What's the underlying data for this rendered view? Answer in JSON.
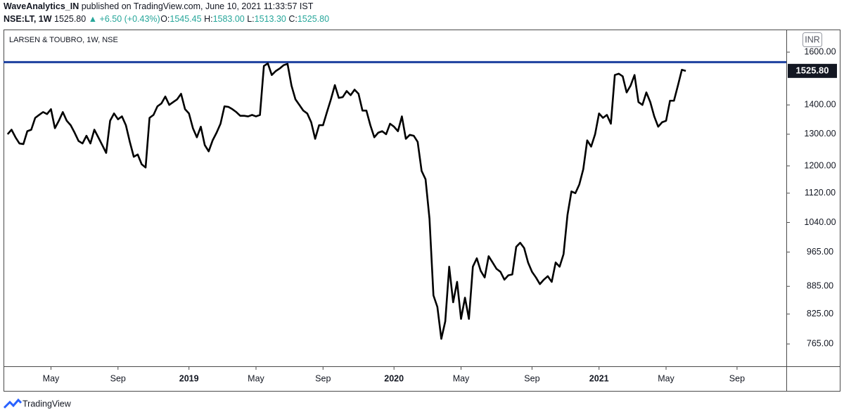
{
  "chart_data": {
    "type": "line",
    "publisher": "WaveAnalytics_IN",
    "published_text": "published on TradingView.com, June 10, 2021 11:33:57 IST",
    "quote": {
      "symbol": "NSE:LT, 1W",
      "last": "1525.80",
      "change": "▲ +6.50 (+0.43%)",
      "open_label": "O:",
      "open": "1545.45",
      "high_label": "H:",
      "high": "1583.00",
      "low_label": "L:",
      "low": "1513.30",
      "close_label": "C:",
      "close": "1525.80"
    },
    "title": "LARSEN & TOUBRO, 1W, NSE",
    "currency": "INR",
    "brand": "TradingView",
    "color": "#000000",
    "log_scale": true,
    "grid": false,
    "hline": {
      "value": 1560,
      "color": "#1c3f9e"
    },
    "last_value_label": {
      "value": 1525.8,
      "label": "1525.80"
    },
    "ylim": [
      723,
      1694
    ],
    "yticks": [
      {
        "value": 1600,
        "label": "1600.00"
      },
      {
        "value": 1400,
        "label": "1400.00"
      },
      {
        "value": 1300,
        "label": "1300.00"
      },
      {
        "value": 1200,
        "label": "1200.00"
      },
      {
        "value": 1120,
        "label": "1120.00"
      },
      {
        "value": 1040,
        "label": "1040.00"
      },
      {
        "value": 965,
        "label": "965.00"
      },
      {
        "value": 885,
        "label": "885.00"
      },
      {
        "value": 825,
        "label": "825.00"
      },
      {
        "value": 765,
        "label": "765.00"
      }
    ],
    "categories": [
      null,
      null,
      null,
      null,
      null,
      null,
      null,
      null,
      null,
      null,
      null,
      "May",
      null,
      null,
      null,
      null,
      null,
      null,
      null,
      null,
      null,
      null,
      null,
      null,
      null,
      null,
      null,
      null,
      "Sep",
      null,
      null,
      null,
      null,
      null,
      null,
      null,
      null,
      null,
      null,
      null,
      null,
      null,
      null,
      null,
      null,
      null,
      "2019",
      null,
      null,
      null,
      null,
      null,
      null,
      null,
      null,
      null,
      null,
      null,
      null,
      null,
      null,
      null,
      null,
      "May",
      null,
      null,
      null,
      null,
      null,
      null,
      null,
      null,
      null,
      null,
      null,
      null,
      null,
      null,
      null,
      null,
      "Sep",
      null,
      null,
      null,
      null,
      null,
      null,
      null,
      null,
      null,
      null,
      null,
      null,
      null,
      null,
      null,
      null,
      null,
      "2020",
      null,
      null,
      null,
      null,
      null,
      null,
      null,
      null,
      null,
      null,
      null,
      null,
      null,
      null,
      null,
      null,
      "May",
      null,
      null,
      null,
      null,
      null,
      null,
      null,
      null,
      null,
      null,
      null,
      null,
      null,
      null,
      null,
      null,
      null,
      "Sep",
      null,
      null,
      null,
      null,
      null,
      null,
      null,
      null,
      null,
      null,
      null,
      null,
      null,
      null,
      null,
      null,
      "2021",
      null,
      null,
      null,
      null,
      null,
      null,
      null,
      null,
      null,
      null,
      null,
      null,
      null,
      null,
      null,
      null,
      "May",
      null,
      null,
      null,
      null,
      null,
      null,
      null,
      null,
      null,
      null,
      null,
      null,
      null,
      null,
      null,
      null,
      null,
      "Sep",
      null,
      null,
      null,
      null,
      null,
      null,
      null,
      null,
      null,
      null,
      null,
      null
    ],
    "values": [
      1300,
      1315,
      1290,
      1270,
      1268,
      1310,
      1315,
      1355,
      1365,
      1375,
      1368,
      1385,
      1320,
      1345,
      1375,
      1345,
      1330,
      1305,
      1278,
      1270,
      1295,
      1270,
      1315,
      1290,
      1265,
      1240,
      1345,
      1370,
      1350,
      1360,
      1330,
      1275,
      1228,
      1235,
      1205,
      1195,
      1355,
      1365,
      1395,
      1405,
      1430,
      1400,
      1410,
      1420,
      1440,
      1385,
      1370,
      1320,
      1290,
      1325,
      1265,
      1245,
      1280,
      1305,
      1335,
      1395,
      1393,
      1385,
      1375,
      1362,
      1362,
      1360,
      1365,
      1360,
      1365,
      1545,
      1555,
      1510,
      1525,
      1535,
      1548,
      1553,
      1470,
      1420,
      1400,
      1380,
      1370,
      1340,
      1285,
      1330,
      1330,
      1375,
      1420,
      1472,
      1425,
      1428,
      1450,
      1435,
      1455,
      1440,
      1380,
      1380,
      1330,
      1290,
      1305,
      1310,
      1300,
      1335,
      1325,
      1310,
      1360,
      1285,
      1298,
      1295,
      1275,
      1185,
      1160,
      1050,
      865,
      840,
      775,
      810,
      930,
      850,
      895,
      815,
      860,
      815,
      930,
      950,
      920,
      905,
      955,
      940,
      925,
      918,
      900,
      910,
      912,
      978,
      988,
      975,
      940,
      918,
      905,
      890,
      900,
      908,
      895,
      940,
      930,
      960,
      1060,
      1125,
      1120,
      1145,
      1190,
      1280,
      1260,
      1300,
      1370,
      1355,
      1365,
      1335,
      1510,
      1515,
      1505,
      1445,
      1470,
      1510,
      1410,
      1400,
      1445,
      1410,
      1360,
      1325,
      1340,
      1345,
      1415,
      1415,
      1470,
      1530,
      1525.8,
      null,
      null,
      null,
      null,
      null,
      null,
      null,
      null,
      null,
      null,
      null,
      null,
      null,
      null,
      null,
      null,
      null,
      null,
      null,
      null,
      null,
      null,
      null,
      null,
      null
    ]
  }
}
